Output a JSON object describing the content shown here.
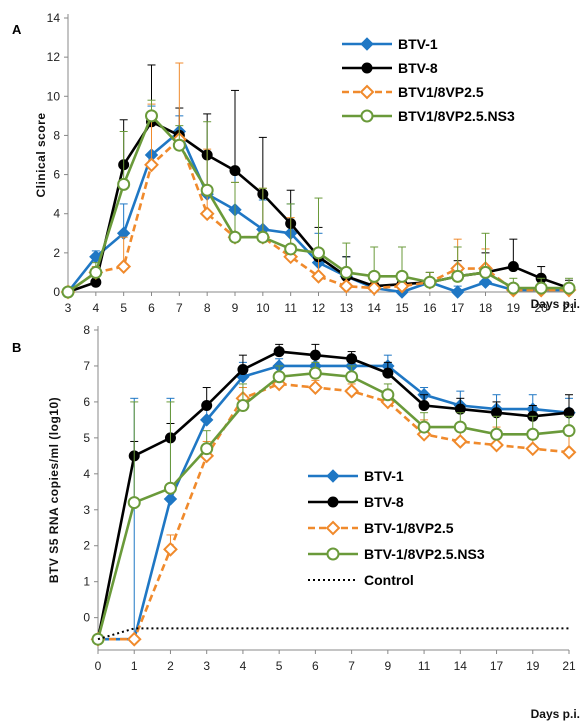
{
  "chart_data": [
    {
      "type": "line",
      "panel_label": "A",
      "x": [
        "3",
        "4",
        "5",
        "6",
        "7",
        "8",
        "9",
        "10",
        "11",
        "12",
        "13",
        "14",
        "15",
        "16",
        "17",
        "18",
        "19",
        "20",
        "21"
      ],
      "ylabel": "Clinical score",
      "xlabel": "Days p.i.",
      "ylim": [
        0,
        14
      ],
      "yticks": [
        "0",
        "2",
        "4",
        "6",
        "8",
        "10",
        "12",
        "14"
      ],
      "legend_position": "top-right",
      "grid": false,
      "series": [
        {
          "name": "BTV-1",
          "color": "#1f77c4",
          "marker": "diamond",
          "dashed": false,
          "values": [
            0,
            1.8,
            3.0,
            7.0,
            8.2,
            5.0,
            4.2,
            3.2,
            3.0,
            1.5,
            0.8,
            0.2,
            0.0,
            0.5,
            0.0,
            0.5,
            0.1,
            0.1,
            0.1
          ],
          "err": [
            0,
            0.3,
            1.5,
            2.5,
            0.8,
            2.0,
            2.0,
            1.5,
            1.5,
            1.5,
            1.0,
            0.5,
            0.3,
            0.5,
            0.3,
            0.5,
            0.3,
            0.3,
            0.3
          ]
        },
        {
          "name": "BTV-8",
          "color": "#000000",
          "marker": "circle",
          "dashed": false,
          "values": [
            0,
            0.5,
            6.5,
            8.7,
            8.0,
            7.0,
            6.2,
            5.0,
            3.5,
            1.8,
            0.8,
            0.3,
            0.4,
            0.5,
            0.8,
            1.0,
            1.3,
            0.7,
            0.2
          ],
          "err": [
            0,
            0.3,
            2.3,
            2.9,
            1.4,
            2.1,
            4.1,
            2.9,
            1.7,
            1.5,
            1.0,
            0.5,
            0.5,
            0.5,
            0.8,
            1.0,
            1.4,
            0.6,
            0.4
          ]
        },
        {
          "name": "BTV1/8VP2.5",
          "color": "#f08a2c",
          "marker": "diamond-open",
          "dashed": true,
          "values": [
            0,
            1.0,
            1.3,
            6.5,
            7.8,
            4.0,
            2.8,
            2.8,
            1.8,
            0.8,
            0.3,
            0.2,
            0.3,
            0.5,
            1.2,
            1.2,
            0.1,
            0.1,
            0.1
          ],
          "err": [
            0,
            0.3,
            1.5,
            3.1,
            3.9,
            3.3,
            2.8,
            2.5,
            2.0,
            1.3,
            0.5,
            0.3,
            0.3,
            0.5,
            1.5,
            1.0,
            0.3,
            0.3,
            0.3
          ]
        },
        {
          "name": "BTV1/8VP2.5.NS3",
          "color": "#6a9a3a",
          "marker": "circle-open",
          "dashed": false,
          "values": [
            0,
            1.0,
            5.5,
            9.0,
            7.5,
            5.2,
            2.8,
            2.8,
            2.2,
            2.0,
            1.0,
            0.8,
            0.8,
            0.5,
            0.8,
            1.0,
            0.2,
            0.2,
            0.2
          ],
          "err": [
            0,
            0.5,
            2.7,
            0.8,
            1.0,
            3.5,
            2.8,
            2.5,
            2.3,
            2.8,
            1.5,
            1.5,
            1.5,
            0.5,
            1.5,
            2.0,
            0.5,
            0.5,
            0.5
          ]
        }
      ]
    },
    {
      "type": "line",
      "panel_label": "B",
      "x": [
        "0",
        "1",
        "2",
        "3",
        "4",
        "5",
        "6",
        "7",
        "9",
        "11",
        "14",
        "17",
        "19",
        "21"
      ],
      "ylabel": "BTV S5 RNA copies/ml (log10)",
      "xlabel": "Days p.i.",
      "ylim": [
        -0.9,
        8
      ],
      "yticks": [
        "0",
        "1",
        "2",
        "3",
        "4",
        "5",
        "6",
        "7",
        "8"
      ],
      "legend_position": "bottom-right",
      "grid": false,
      "series": [
        {
          "name": "BTV-1",
          "color": "#1f77c4",
          "marker": "diamond",
          "dashed": false,
          "values": [
            -0.6,
            -0.6,
            3.3,
            5.5,
            6.7,
            7.0,
            7.0,
            7.0,
            7.0,
            6.2,
            5.9,
            5.8,
            5.8,
            5.7
          ],
          "err": [
            0,
            6.7,
            2.8,
            0.5,
            0.4,
            0.2,
            0.3,
            0.3,
            0.3,
            0.2,
            0.4,
            0.4,
            0.4,
            0.4
          ]
        },
        {
          "name": "BTV-8",
          "color": "#000000",
          "marker": "circle",
          "dashed": false,
          "values": [
            -0.6,
            4.5,
            5.0,
            5.9,
            6.9,
            7.4,
            7.3,
            7.2,
            6.8,
            5.9,
            5.8,
            5.7,
            5.6,
            5.7
          ],
          "err": [
            0,
            0.4,
            0.4,
            0.5,
            0.4,
            0.2,
            0.3,
            0.2,
            0.3,
            0.3,
            0.3,
            0.3,
            0.3,
            0.5
          ]
        },
        {
          "name": "BTV-1/8VP2.5",
          "color": "#f08a2c",
          "marker": "diamond-open",
          "dashed": true,
          "values": [
            -0.6,
            -0.6,
            1.9,
            4.5,
            6.1,
            6.5,
            6.4,
            6.3,
            6.0,
            5.1,
            4.9,
            4.8,
            4.7,
            4.6
          ],
          "err": [
            0,
            0,
            0.4,
            0.4,
            0.3,
            0.2,
            0.2,
            0.2,
            0.2,
            0.4,
            0.4,
            0.5,
            0.5,
            0.5
          ]
        },
        {
          "name": "BTV-1/8VP2.5.NS3",
          "color": "#6a9a3a",
          "marker": "circle-open",
          "dashed": false,
          "values": [
            -0.6,
            3.2,
            3.6,
            4.7,
            5.9,
            6.7,
            6.8,
            6.7,
            6.2,
            5.3,
            5.3,
            5.1,
            5.1,
            5.2
          ],
          "err": [
            0,
            2.8,
            2.4,
            0.5,
            0.6,
            0.3,
            0.3,
            0.3,
            0.3,
            0.4,
            0.4,
            0.5,
            0.5,
            0.4
          ]
        },
        {
          "name": "Control",
          "color": "#000000",
          "marker": "none",
          "dotted": true,
          "values": [
            -0.6,
            -0.3,
            -0.3,
            -0.3,
            -0.3,
            -0.3,
            -0.3,
            -0.3,
            -0.3,
            -0.3,
            -0.3,
            -0.3,
            -0.3,
            -0.3
          ],
          "err": [
            0,
            0,
            0,
            0,
            0,
            0,
            0,
            0,
            0,
            0,
            0,
            0,
            0,
            0
          ]
        }
      ]
    }
  ]
}
